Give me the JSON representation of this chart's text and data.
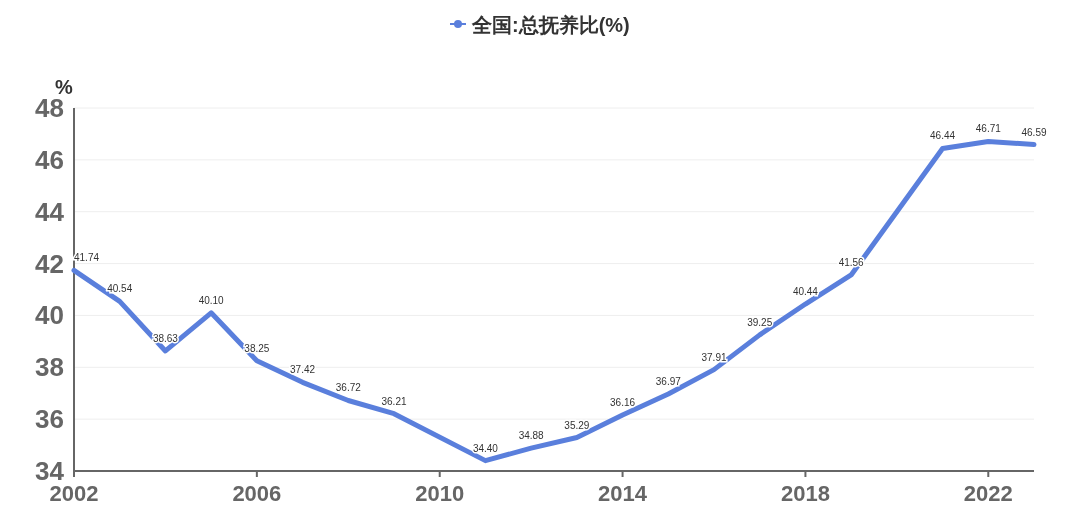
{
  "chart_data": {
    "type": "line",
    "ylabel": "%",
    "legend": "top",
    "grid": "y",
    "marker": "none",
    "line_style": "solid",
    "x": [
      2002,
      2003,
      2004,
      2005,
      2006,
      2007,
      2008,
      2009,
      2011,
      2012,
      2013,
      2014,
      2015,
      2016,
      2017,
      2018,
      2019,
      2021,
      2022,
      2023
    ],
    "xlim": [
      2002,
      2023
    ],
    "xticks": [
      2002,
      2006,
      2010,
      2014,
      2018,
      2022
    ],
    "ylim": [
      34,
      48
    ],
    "yticks": [
      34,
      36,
      38,
      40,
      42,
      44,
      46,
      48
    ],
    "series": [
      {
        "name": "全国:总抚养比(%)",
        "color": "#5a7fdc",
        "values": [
          41.74,
          40.54,
          38.63,
          40.1,
          38.25,
          37.42,
          36.72,
          36.21,
          34.4,
          34.88,
          35.29,
          36.16,
          36.97,
          37.91,
          39.25,
          40.44,
          41.56,
          46.44,
          46.71,
          46.59
        ],
        "value_labels": [
          "41.74",
          "40.54",
          "38.63",
          "40.10",
          "38.25",
          "37.42",
          "36.72",
          "36.21",
          "34.40",
          "34.88",
          "35.29",
          "36.16",
          "36.97",
          "37.91",
          "39.25",
          "40.44",
          "41.56",
          "46.44",
          "46.71",
          "46.59"
        ]
      }
    ]
  }
}
